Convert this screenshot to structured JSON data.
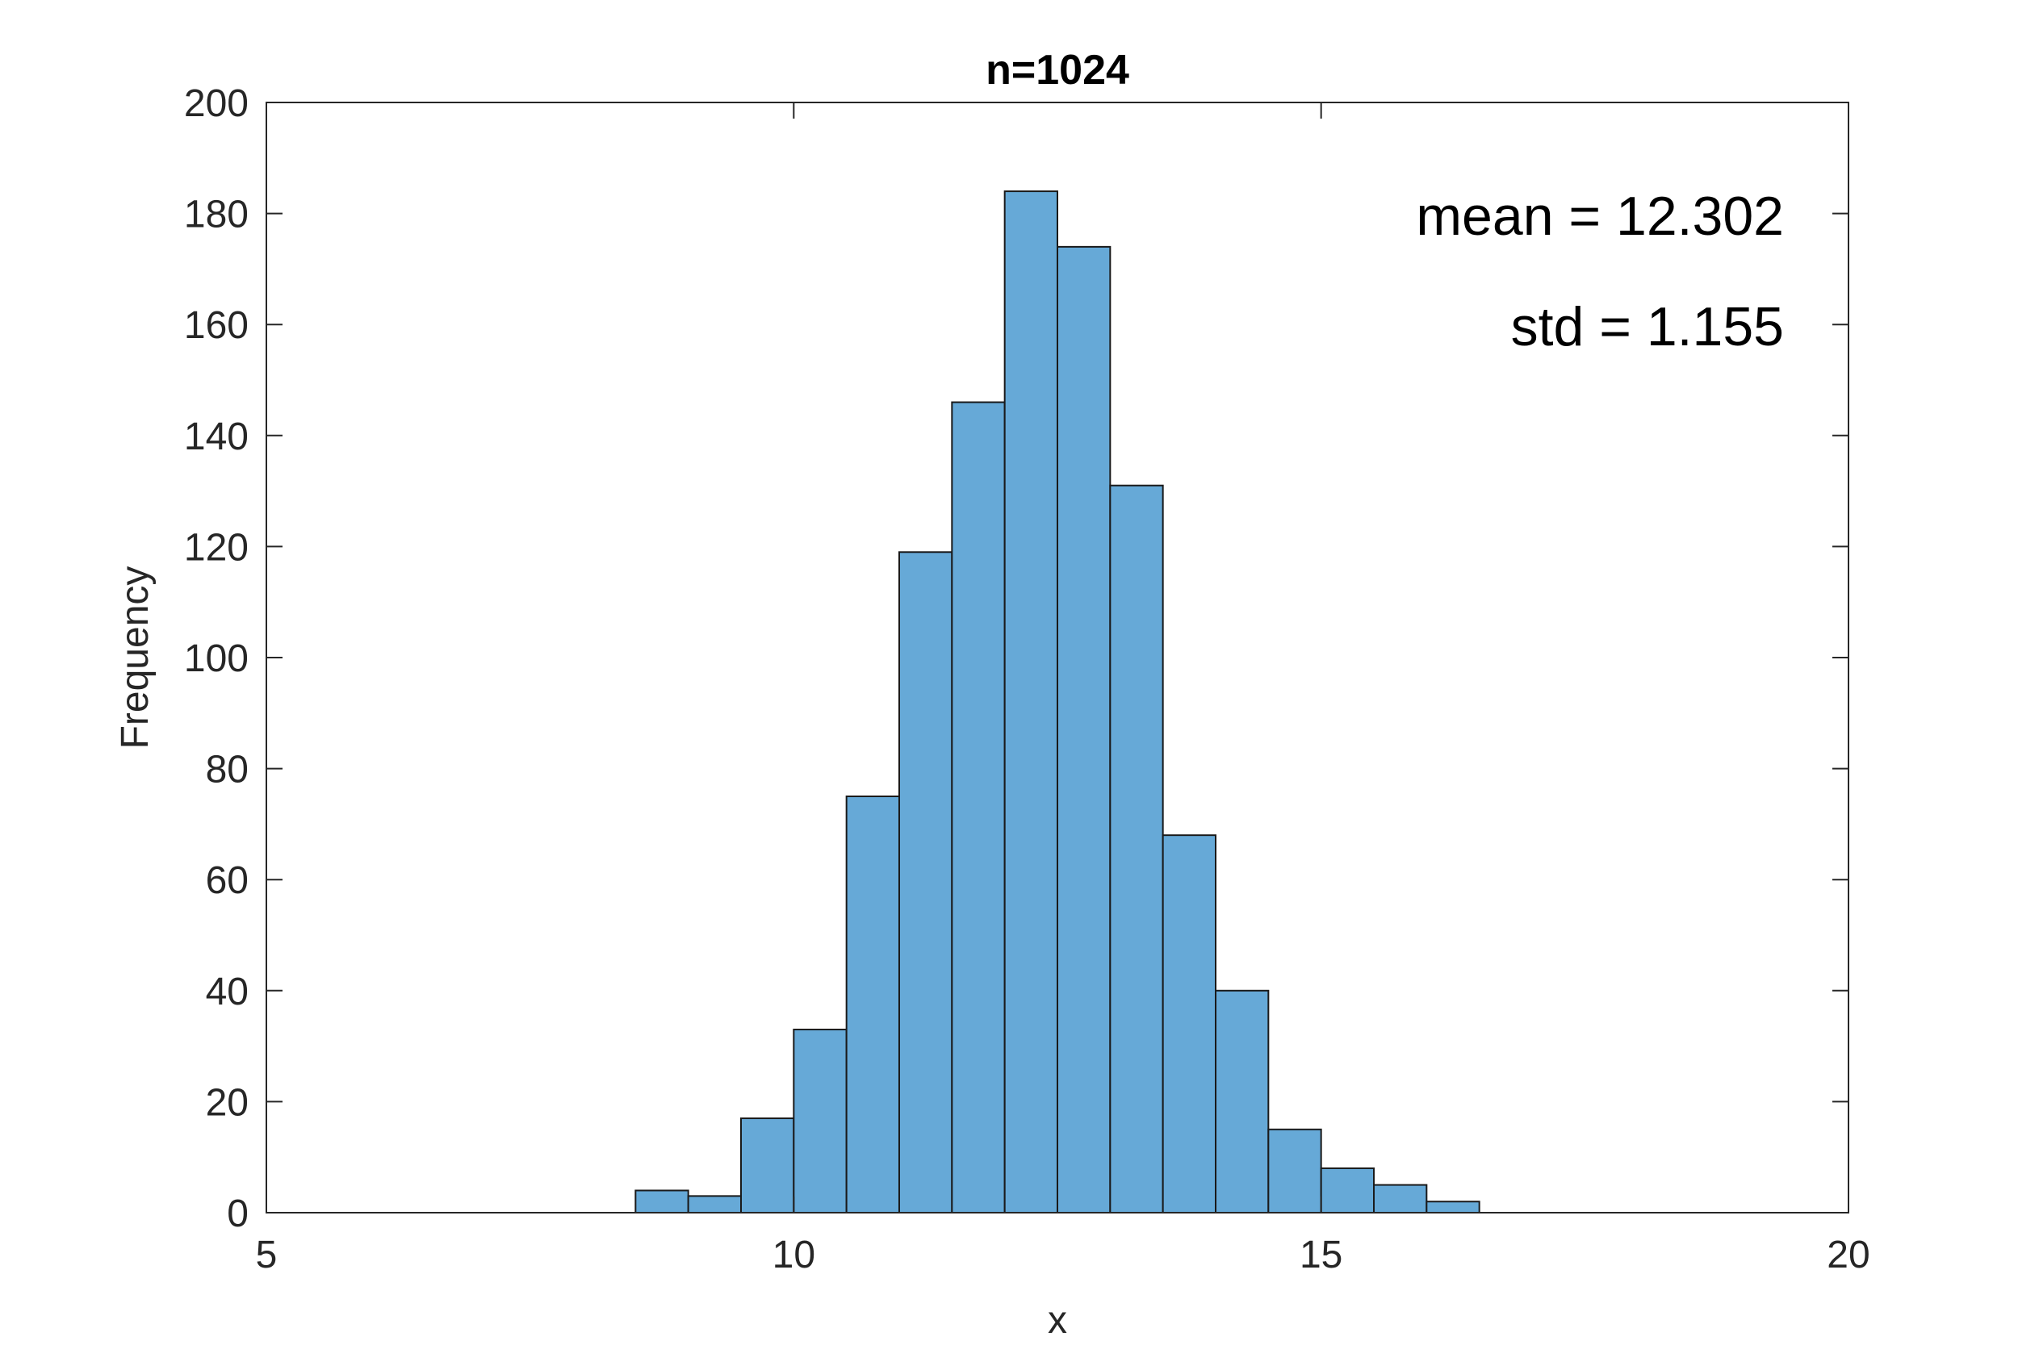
{
  "chart_data": {
    "type": "bar",
    "subtype": "histogram",
    "title": "n=1024",
    "xlabel": "x",
    "ylabel": "Frequency",
    "xlim": [
      5,
      20
    ],
    "ylim": [
      0,
      200
    ],
    "xticks": [
      5,
      10,
      15,
      20
    ],
    "yticks": [
      0,
      20,
      40,
      60,
      80,
      100,
      120,
      140,
      160,
      180,
      200
    ],
    "bin_width": 0.5,
    "bins": [
      {
        "start": 8.5,
        "end": 9.0,
        "count": 4
      },
      {
        "start": 9.0,
        "end": 9.5,
        "count": 3
      },
      {
        "start": 9.5,
        "end": 10.0,
        "count": 17
      },
      {
        "start": 10.0,
        "end": 10.5,
        "count": 33
      },
      {
        "start": 10.5,
        "end": 11.0,
        "count": 75
      },
      {
        "start": 11.0,
        "end": 11.5,
        "count": 119
      },
      {
        "start": 11.5,
        "end": 12.0,
        "count": 146
      },
      {
        "start": 12.0,
        "end": 12.5,
        "count": 184
      },
      {
        "start": 12.5,
        "end": 13.0,
        "count": 174
      },
      {
        "start": 13.0,
        "end": 13.5,
        "count": 131
      },
      {
        "start": 13.5,
        "end": 14.0,
        "count": 68
      },
      {
        "start": 14.0,
        "end": 14.5,
        "count": 40
      },
      {
        "start": 14.5,
        "end": 15.0,
        "count": 15
      },
      {
        "start": 15.0,
        "end": 15.5,
        "count": 8
      },
      {
        "start": 15.5,
        "end": 16.0,
        "count": 5
      },
      {
        "start": 16.0,
        "end": 16.5,
        "count": 2
      }
    ],
    "annotations": [
      "mean = 12.302",
      "std = 1.155"
    ],
    "grid": false,
    "bar_color": "#66a9d7",
    "edge_color": "#1a1a1a"
  }
}
